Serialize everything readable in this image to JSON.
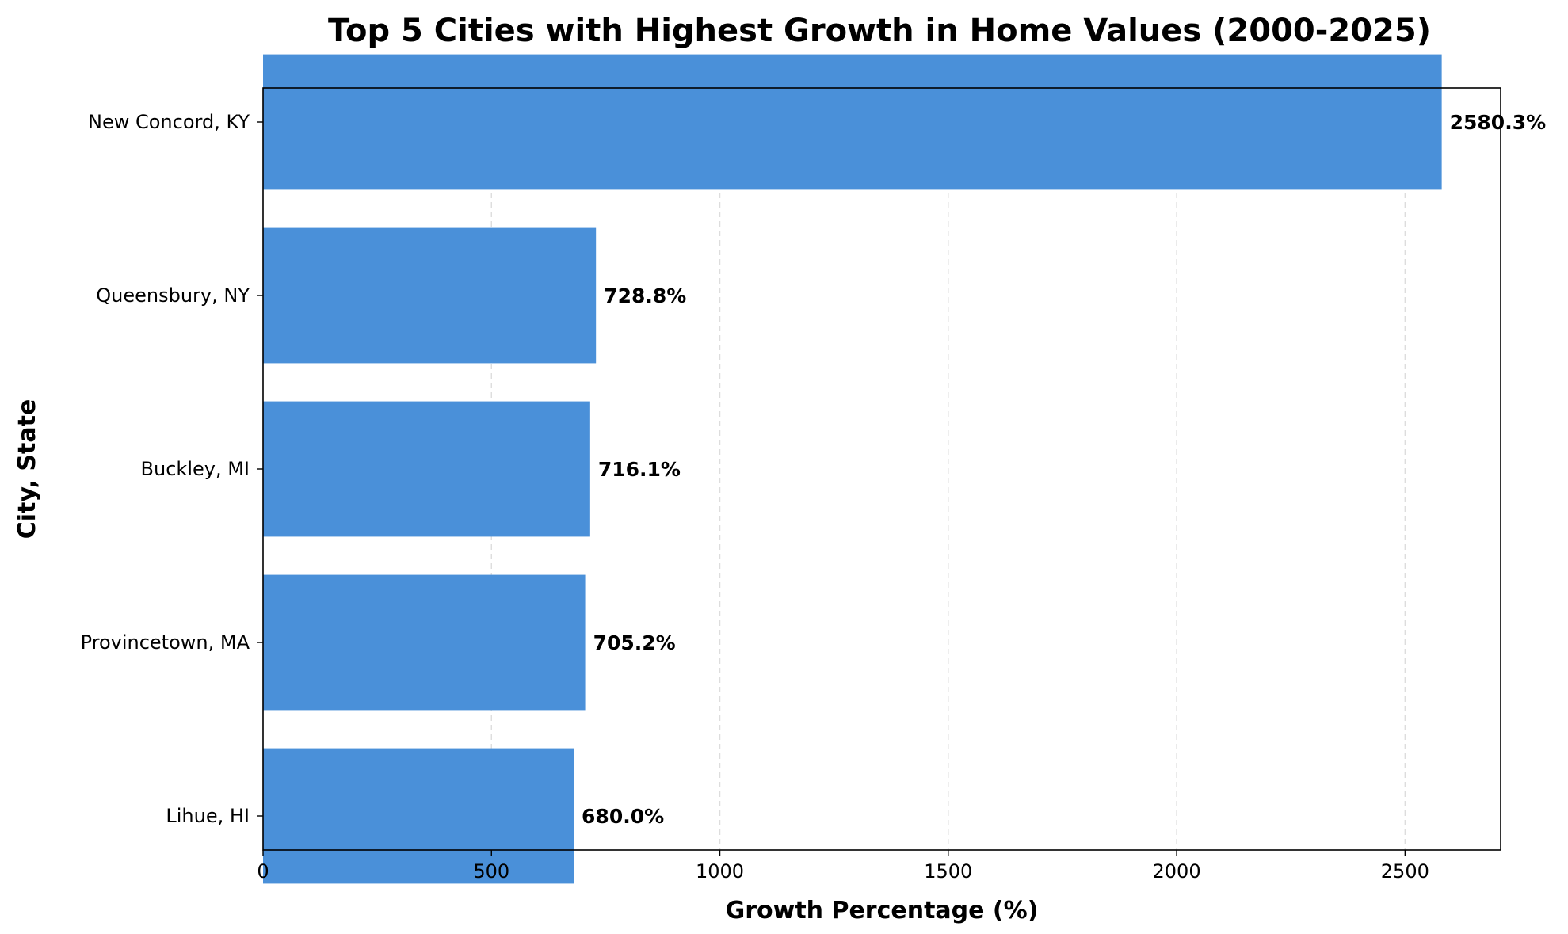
{
  "chart_data": {
    "type": "bar",
    "orientation": "horizontal",
    "title": "Top 5 Cities with Highest Growth in Home Values (2000-2025)",
    "xlabel": "Growth Percentage (%)",
    "ylabel": "City, State",
    "categories": [
      "New Concord, KY",
      "Queensbury, NY",
      "Buckley, MI",
      "Provincetown, MA",
      "Lihue, HI"
    ],
    "values": [
      2580.3,
      728.8,
      716.1,
      705.2,
      680.0
    ],
    "value_labels": [
      "2580.3%",
      "728.8%",
      "716.1%",
      "705.2%",
      "680.0%"
    ],
    "xlim": [
      0,
      2709.3
    ],
    "xticks": [
      0,
      500,
      1000,
      1500,
      2000,
      2500
    ],
    "xtick_labels": [
      "0",
      "500",
      "1000",
      "1500",
      "2000",
      "2500"
    ],
    "grid": "x-axis dashed",
    "bar_color": "#4A90D9"
  }
}
